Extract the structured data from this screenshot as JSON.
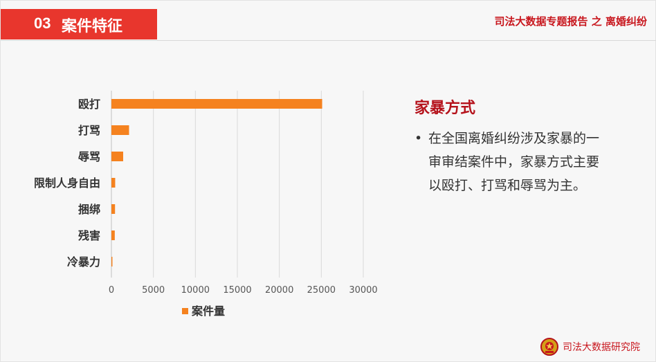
{
  "header": {
    "section_number": "03",
    "section_title": "案件特征",
    "report_title": "司法大数据专题报告 之 离婚纠纷"
  },
  "chart_data": {
    "type": "bar",
    "orientation": "horizontal",
    "categories": [
      "殴打",
      "打骂",
      "辱骂",
      "限制人身自由",
      "捆绑",
      "残害",
      "冷暴力"
    ],
    "series": [
      {
        "name": "案件量",
        "values": [
          25100,
          2100,
          1400,
          450,
          430,
          400,
          120
        ]
      }
    ],
    "xlim": [
      0,
      30000
    ],
    "xticks": [
      0,
      5000,
      10000,
      15000,
      20000,
      25000,
      30000
    ],
    "grid": true,
    "legend_position": "bottom",
    "bar_color": "#f5821f"
  },
  "side_panel": {
    "title": "家暴方式",
    "bullet": "•",
    "text": "在全国离婚纠纷涉及家暴的一审审结案件中，家暴方式主要以殴打、打骂和辱骂为主。"
  },
  "footer": {
    "org_name": "司法大数据研究院",
    "logo_icon": "court-emblem-icon"
  }
}
